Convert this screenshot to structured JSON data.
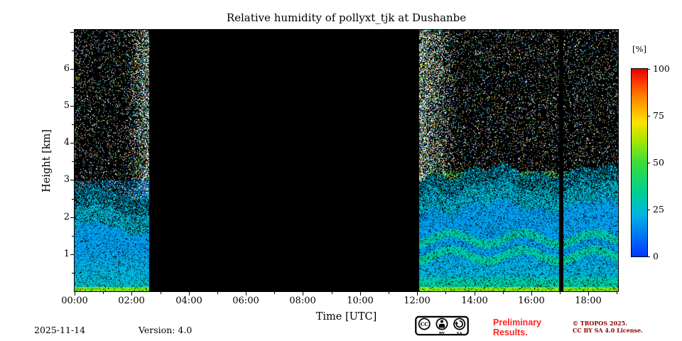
{
  "chart_data": {
    "type": "heatmap",
    "title": "Relative humidity of pollyxt_tjk at Dushanbe",
    "xlabel": "Time [UTC]",
    "ylabel": "Height [km]",
    "colorbar_label": "[%]",
    "colorbar_tick_labels": [
      "100",
      "75",
      "50",
      "25",
      "0"
    ],
    "value_range_percent": [
      0,
      100
    ],
    "x_tick_labels": [
      "00:00",
      "02:00",
      "04:00",
      "06:00",
      "08:00",
      "10:00",
      "12:00",
      "14:00",
      "16:00",
      "18:00"
    ],
    "y_tick_labels": [
      "1",
      "2",
      "3",
      "4",
      "5",
      "6"
    ],
    "x_range_hours": [
      0,
      19.04
    ],
    "y_range_km": [
      0,
      7.05
    ],
    "background_color": "#000000",
    "data_segments_hours": [
      [
        0,
        2.62
      ],
      [
        12.07,
        16.98
      ],
      [
        17.12,
        19.04
      ]
    ],
    "data_gaps_hours": [
      [
        2.62,
        12.07
      ],
      [
        16.98,
        17.12
      ]
    ],
    "colormap_stops": [
      [
        0.0,
        [
          0,
          56,
          255
        ]
      ],
      [
        0.22,
        [
          0,
          180,
          230
        ]
      ],
      [
        0.35,
        [
          0,
          210,
          140
        ]
      ],
      [
        0.5,
        [
          60,
          220,
          60
        ]
      ],
      [
        0.62,
        [
          170,
          230,
          0
        ]
      ],
      [
        0.72,
        [
          255,
          225,
          0
        ]
      ],
      [
        0.84,
        [
          255,
          140,
          0
        ]
      ],
      [
        0.93,
        [
          255,
          60,
          0
        ]
      ],
      [
        1.0,
        [
          230,
          0,
          0
        ]
      ]
    ],
    "features": {
      "surface_layer": {
        "top_km": 0.12,
        "rh_percent": [
          46,
          68
        ]
      },
      "boundary_layer": {
        "morning_top_km": 2.05,
        "afternoon_top_km": 2.65,
        "rh_percent": [
          13,
          30
        ]
      },
      "cyan_layers_afternoon_km": [
        [
          0.85,
          1.1
        ],
        [
          1.3,
          1.55
        ]
      ],
      "moist_band_afternoon": {
        "km": [
          2.25,
          3.25
        ],
        "rh_percent": [
          32,
          62
        ],
        "density": 0.33
      },
      "noise_speckle": {
        "base_density": 0.11,
        "white_fraction": 0.55
      },
      "edge_noise": {
        "morning_after_hour": 1.8,
        "morning_rate": 0.55,
        "afternoon_before_hour": 13.4,
        "afternoon_rate": 0.38
      }
    }
  },
  "footer": {
    "date": "2025-11-14",
    "version": "Version: 4.0",
    "preliminary": {
      "line1": "Preliminary",
      "line2": "Results.",
      "color": "#ff2222"
    },
    "copyright": {
      "line1": "© TROPOS 2025.",
      "line2": "CC BY SA 4.0 License.",
      "color": "#8b0000"
    },
    "license_badge": {
      "cc_label": "CC",
      "by_label": "BY",
      "sa_label": "SA"
    }
  }
}
